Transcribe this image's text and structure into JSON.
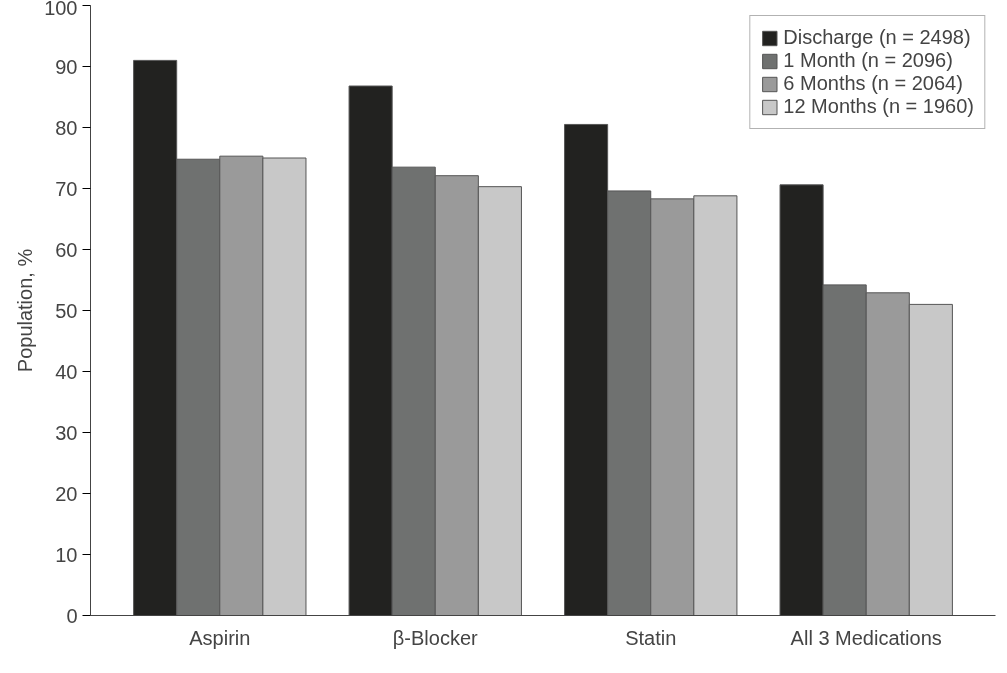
{
  "chart_data": {
    "type": "bar",
    "ylabel": "Population, %",
    "categories": [
      "Aspirin",
      "β-Blocker",
      "Statin",
      "All 3 Medications"
    ],
    "series": [
      {
        "name": "Discharge (n = 2498)",
        "color": "#222220",
        "values": [
          91.0,
          86.8,
          80.5,
          70.6
        ]
      },
      {
        "name": "1 Month (n = 2096)",
        "color": "#6f7170",
        "values": [
          74.8,
          73.5,
          69.6,
          54.2
        ]
      },
      {
        "name": "6 Months (n = 2064)",
        "color": "#9a9a9a",
        "values": [
          75.3,
          72.1,
          68.3,
          52.9
        ]
      },
      {
        "name": "12 Months (n = 1960)",
        "color": "#c8c8c8",
        "values": [
          75.0,
          70.3,
          68.8,
          51.0
        ]
      }
    ],
    "ylim": [
      0,
      100
    ],
    "yticks": [
      0,
      10,
      20,
      30,
      40,
      50,
      60,
      70,
      80,
      90,
      100
    ],
    "grid": false,
    "legend": "top right"
  }
}
